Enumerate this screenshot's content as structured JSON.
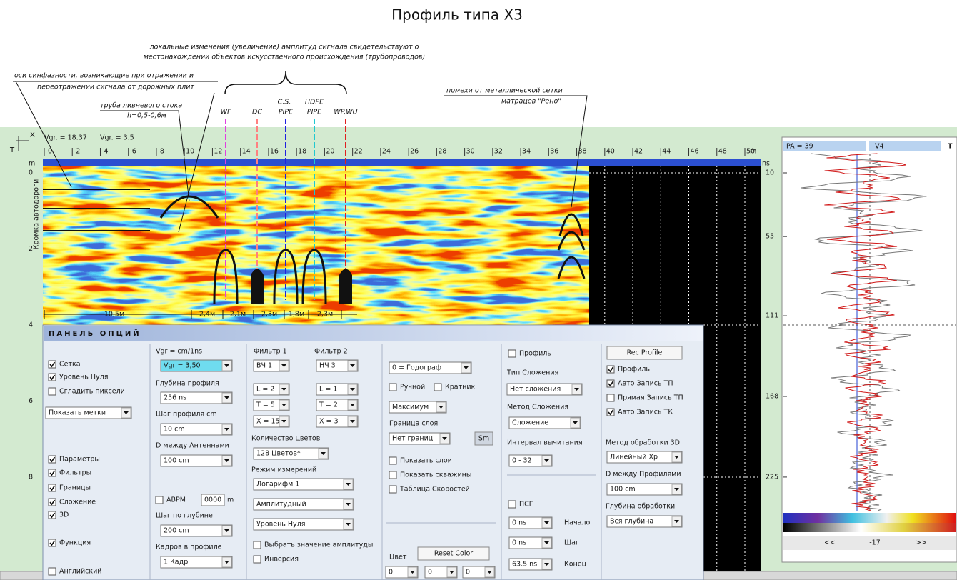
{
  "title": "Профиль типа Х3",
  "annotations": {
    "amplitude_note": [
      "локальные изменения (увеличение) амплитуд сигнала свидетельствуют о",
      "местонахождении объектов искусственного происхождения (трубопроводов)"
    ],
    "sync_axes_note": [
      "оси синфазности, возникающие при отражении и",
      "переотражении сигнала от дорожных плит"
    ],
    "drain_pipe": [
      "труба ливневого стока",
      "h=0,5-0,6м"
    ],
    "mesh_note": [
      "помехи от металлической сетки",
      "матрацев \"Рено\""
    ],
    "objects": [
      "WF",
      "DC",
      "C.S.",
      "PIPE",
      "HDPE",
      "PIPE",
      "WP,WU"
    ],
    "distances": [
      "10,5м",
      "2,4м",
      "2,1м",
      "2,3м",
      "1,8м",
      "2,3м"
    ],
    "road_edge": "Кромка автодороги"
  },
  "radargram": {
    "axis_x": "X",
    "axis_t": "T",
    "header": [
      "Vgr. = 18.37",
      "Vgr. = 3.5"
    ],
    "x_unit": "m",
    "x_ticks": [
      0,
      2,
      4,
      6,
      8,
      10,
      12,
      14,
      16,
      18,
      20,
      22,
      24,
      26,
      28,
      30,
      32,
      34,
      36,
      38,
      40,
      42,
      44,
      46,
      48,
      50
    ],
    "y_unit": "m",
    "y_ticks": [
      0,
      2,
      4,
      6,
      8
    ]
  },
  "trace_panel": {
    "header": [
      "PA = 39",
      "V4",
      "T"
    ],
    "unit": "ns",
    "ticks": [
      10,
      55,
      111,
      168,
      225
    ],
    "nav": [
      "<<",
      "-17",
      ">>"
    ]
  },
  "options_panel": {
    "title": "ПАНЕЛЬ ОПЦИЙ",
    "controls": [
      {
        "text": "Сетка",
        "control": "checkbox",
        "checked": true
      },
      {
        "text": "Уровень Нуля",
        "control": "checkbox",
        "checked": true
      },
      {
        "text": "Сгладить пиксели",
        "control": "checkbox",
        "checked": false
      },
      {
        "text": "Показать метки",
        "control": "select"
      },
      {
        "text": "Параметры",
        "control": "checkbox",
        "checked": true
      },
      {
        "text": "Фильтры",
        "control": "checkbox",
        "checked": true
      },
      {
        "text": "Границы",
        "control": "checkbox",
        "checked": true
      },
      {
        "text": "Сложение",
        "control": "checkbox",
        "checked": true
      },
      {
        "text": "3D",
        "control": "checkbox",
        "checked": true
      },
      {
        "text": "Функция",
        "control": "checkbox",
        "checked": true
      },
      {
        "text": "Английский",
        "control": "checkbox",
        "checked": false
      },
      {
        "text": "Vgr = cm/1ns",
        "control": "label"
      },
      {
        "text": "Vgr = 3,50",
        "control": "select",
        "highlight": true
      },
      {
        "text": "Глубина профиля",
        "control": "label"
      },
      {
        "text": "256 ns",
        "control": "select"
      },
      {
        "text": "Шаг профиля cm",
        "control": "label"
      },
      {
        "text": "10 cm",
        "control": "select"
      },
      {
        "text": "D между Антеннами",
        "control": "label"
      },
      {
        "text": "100 cm",
        "control": "select"
      },
      {
        "text": "АВРМ",
        "control": "checkbox",
        "checked": false
      },
      {
        "text": "0000",
        "control": "input"
      },
      {
        "text": "m",
        "control": "label"
      },
      {
        "text": "Шаг по глубине",
        "control": "label"
      },
      {
        "text": "200 cm",
        "control": "select"
      },
      {
        "text": "Кадров в профиле",
        "control": "label"
      },
      {
        "text": "1 Кадр",
        "control": "select"
      },
      {
        "text": "Фильтр 1",
        "control": "label"
      },
      {
        "text": "Фильтр 2",
        "control": "label"
      },
      {
        "text": "ВЧ 1",
        "control": "select"
      },
      {
        "text": "НЧ 3",
        "control": "select"
      },
      {
        "text": "L = 2",
        "control": "select"
      },
      {
        "text": "L = 1",
        "control": "select"
      },
      {
        "text": "T = 5",
        "control": "select"
      },
      {
        "text": "T = 2",
        "control": "select"
      },
      {
        "text": "X = 15",
        "control": "select"
      },
      {
        "text": "X = 3",
        "control": "select"
      },
      {
        "text": "Количество цветов",
        "control": "label"
      },
      {
        "text": "128 Цветов*",
        "control": "select"
      },
      {
        "text": "Режим измерений",
        "control": "label"
      },
      {
        "text": "Логарифм 1",
        "control": "select"
      },
      {
        "text": "Амплитудный",
        "control": "select"
      },
      {
        "text": "Уровень Нуля",
        "control": "select"
      },
      {
        "text": "Выбрать значение амплитуды",
        "control": "checkbox",
        "checked": false
      },
      {
        "text": "Инверсия",
        "control": "checkbox",
        "checked": false
      },
      {
        "text": "0 = Годограф",
        "control": "select"
      },
      {
        "text": "Ручной",
        "control": "checkbox",
        "checked": false
      },
      {
        "text": "Кратник",
        "control": "checkbox",
        "checked": false
      },
      {
        "text": "Максимум",
        "control": "select"
      },
      {
        "text": "Граница слоя",
        "control": "label"
      },
      {
        "text": "Нет границ",
        "control": "select"
      },
      {
        "text": "Sm",
        "control": "button",
        "disabled": true
      },
      {
        "text": "Показать слои",
        "control": "checkbox",
        "checked": false
      },
      {
        "text": "Показать скважины",
        "control": "checkbox",
        "checked": false
      },
      {
        "text": "Таблица Скоростей",
        "control": "checkbox",
        "checked": false
      },
      {
        "text": "Цвет",
        "control": "label"
      },
      {
        "text": "Reset Color",
        "control": "button"
      },
      {
        "text": "0",
        "control": "select"
      },
      {
        "text": "0",
        "control": "select"
      },
      {
        "text": "0",
        "control": "select"
      },
      {
        "text": "Профиль",
        "control": "checkbox",
        "checked": false
      },
      {
        "text": "Тип Сложения",
        "control": "label"
      },
      {
        "text": "Нет сложения",
        "control": "select"
      },
      {
        "text": "Метод Сложения",
        "control": "label"
      },
      {
        "text": "Сложение",
        "control": "select"
      },
      {
        "text": "Интервал вычитания",
        "control": "label"
      },
      {
        "text": "0 - 32",
        "control": "select"
      },
      {
        "text": "ПСП",
        "control": "checkbox",
        "checked": false
      },
      {
        "text": "0 ns",
        "control": "select"
      },
      {
        "text": "Начало",
        "control": "label",
        "disabled": true
      },
      {
        "text": "0 ns",
        "control": "select"
      },
      {
        "text": "Шаг",
        "control": "label",
        "disabled": true
      },
      {
        "text": "63.5 ns",
        "control": "select"
      },
      {
        "text": "Конец",
        "control": "label",
        "disabled": true
      },
      {
        "text": "Rec Profile",
        "control": "button"
      },
      {
        "text": "Профиль",
        "control": "checkbox",
        "checked": true
      },
      {
        "text": "Авто Запись ТП",
        "control": "checkbox",
        "checked": true
      },
      {
        "text": "Прямая Запись ТП",
        "control": "checkbox",
        "checked": false
      },
      {
        "text": "Авто Запись ТК",
        "control": "checkbox",
        "checked": true
      },
      {
        "text": "Метод обработки 3D",
        "control": "label"
      },
      {
        "text": "Линейный Xp",
        "control": "select"
      },
      {
        "text": "D между Профилями",
        "control": "label"
      },
      {
        "text": "100 cm",
        "control": "select"
      },
      {
        "text": "Глубина обработки",
        "control": "label"
      },
      {
        "text": "Вся глубина",
        "control": "select"
      }
    ]
  }
}
